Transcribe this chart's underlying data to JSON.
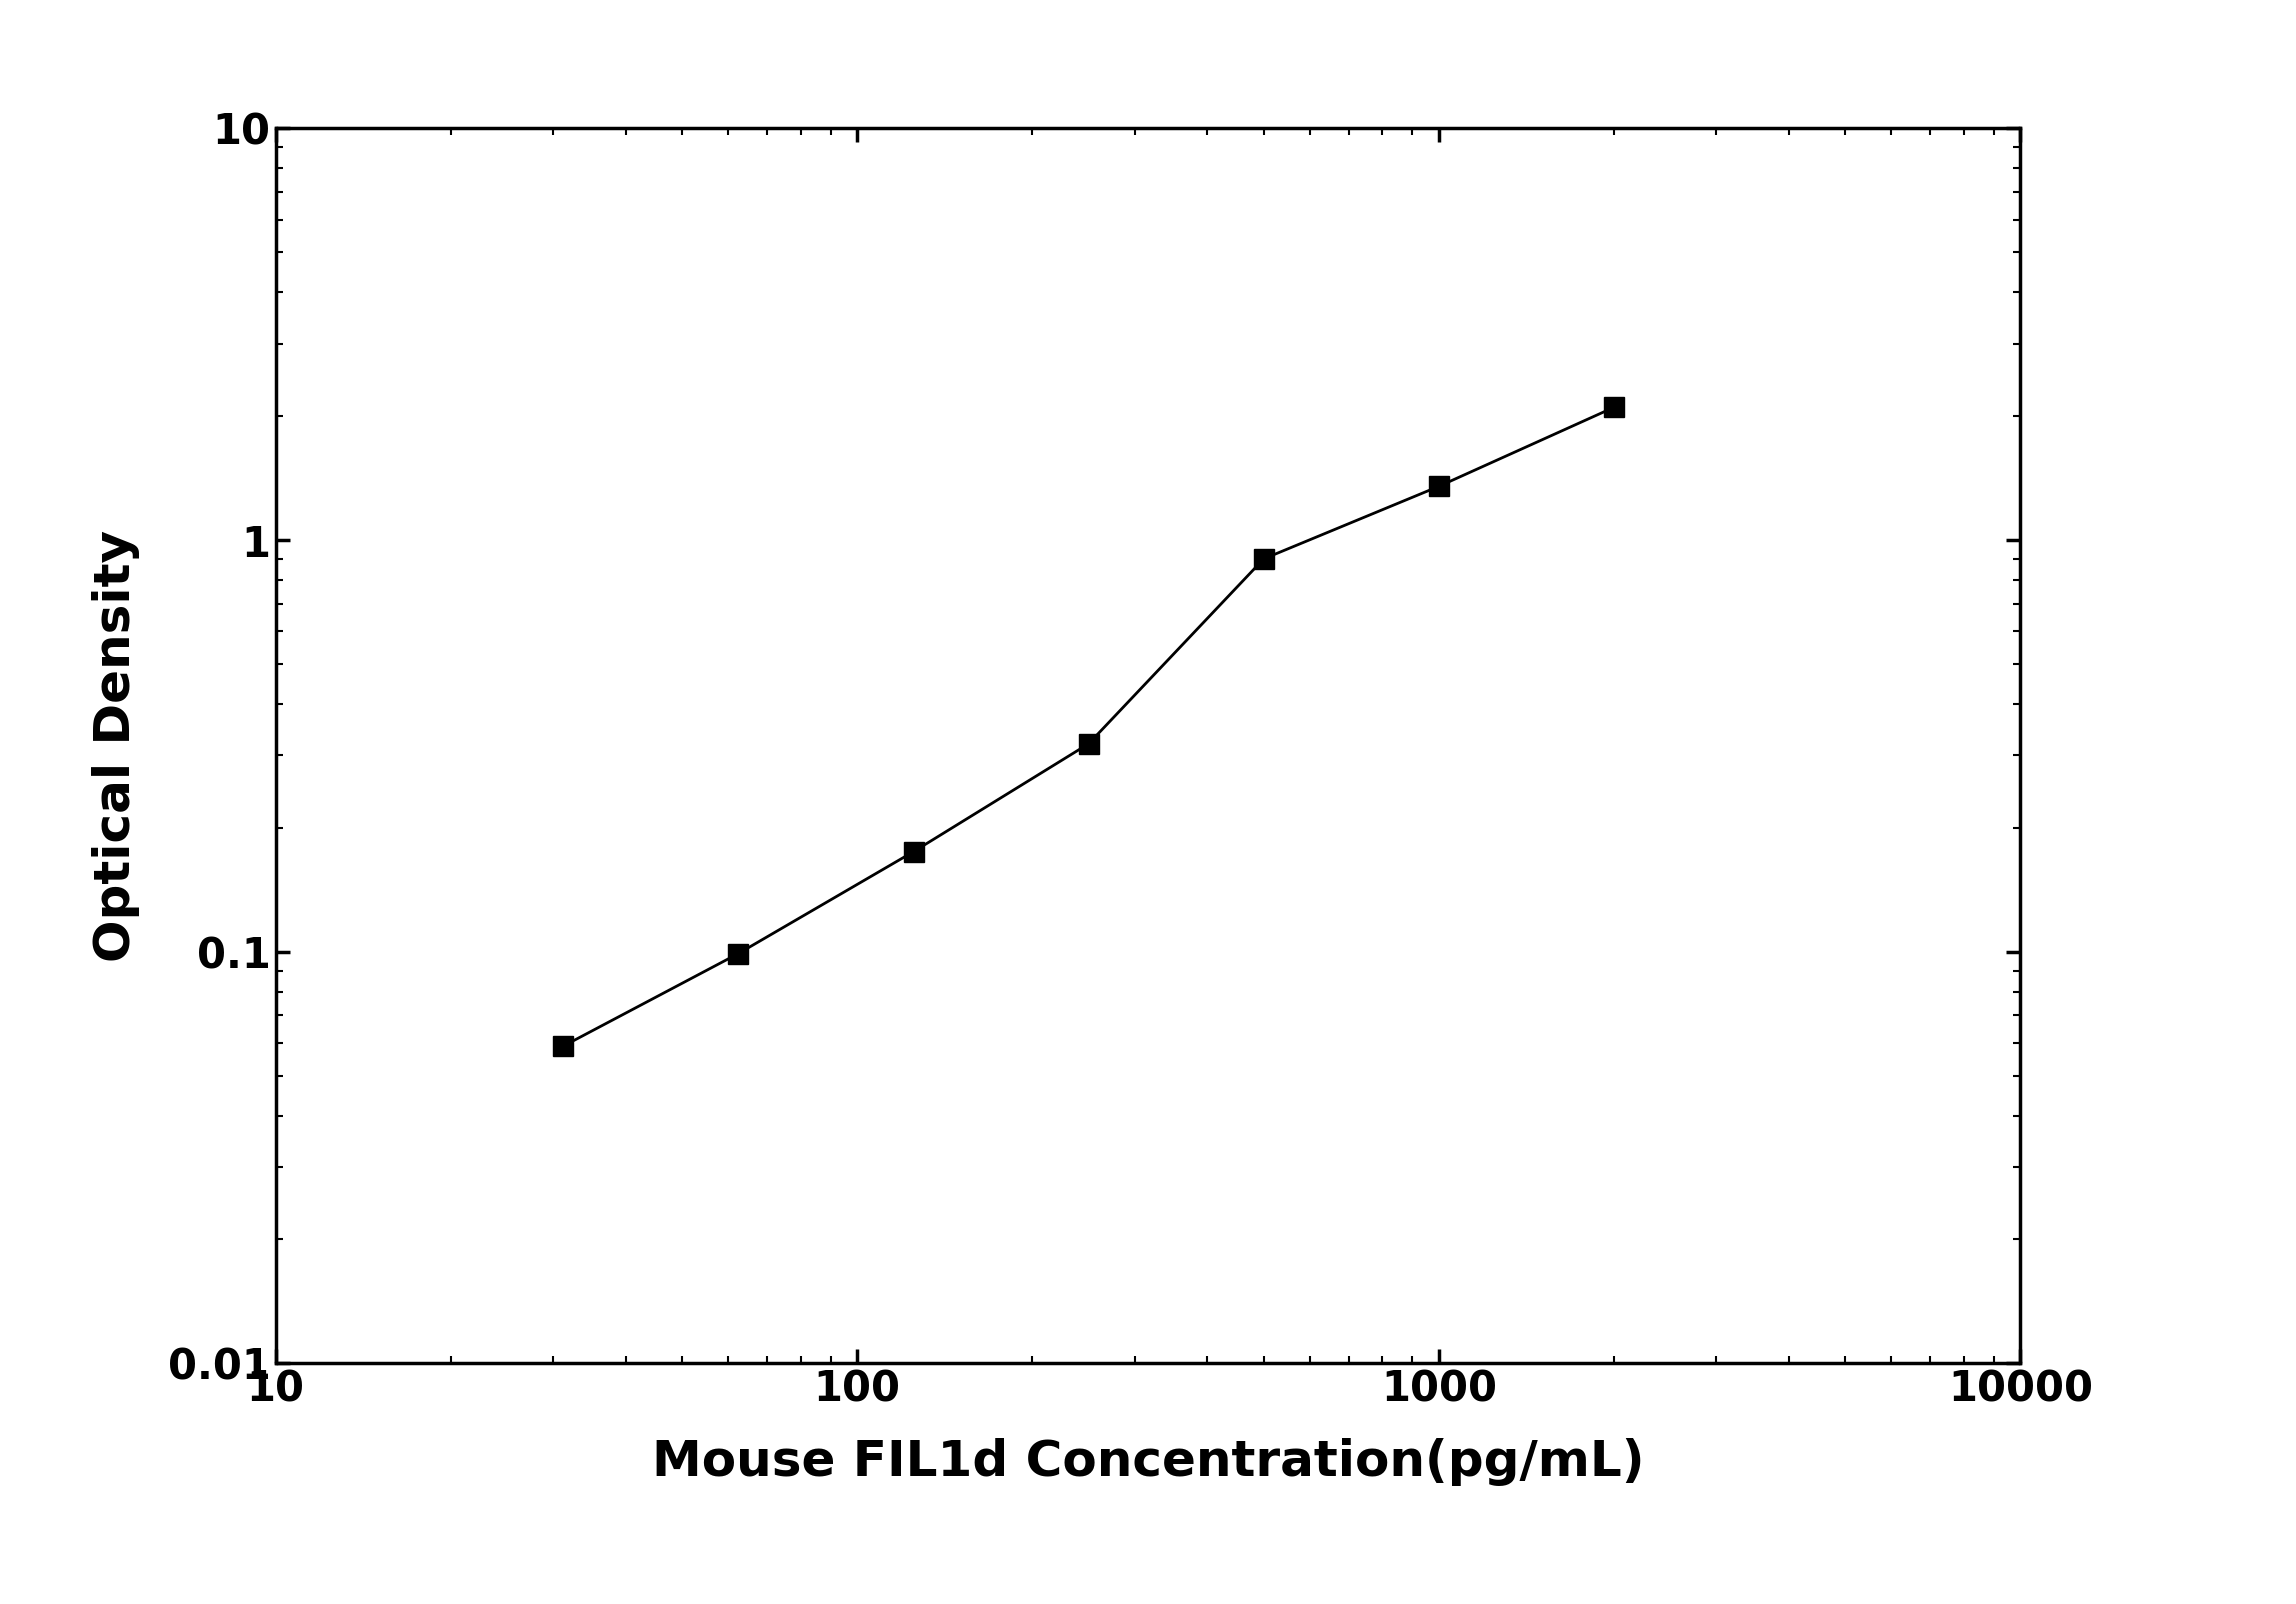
{
  "x": [
    31.25,
    62.5,
    125,
    250,
    500,
    1000,
    2000
  ],
  "y": [
    0.059,
    0.099,
    0.175,
    0.32,
    0.9,
    1.35,
    2.1
  ],
  "xlabel": "Mouse FIL1d Concentration(pg/mL)",
  "ylabel": "Optical Density",
  "xlim": [
    10,
    10000
  ],
  "ylim": [
    0.01,
    10
  ],
  "line_color": "#000000",
  "marker": "s",
  "marker_color": "#000000",
  "marker_size": 14,
  "linewidth": 2.0,
  "background_color": "#ffffff",
  "xlabel_fontsize": 36,
  "ylabel_fontsize": 36,
  "tick_fontsize": 30,
  "spine_linewidth": 2.5
}
